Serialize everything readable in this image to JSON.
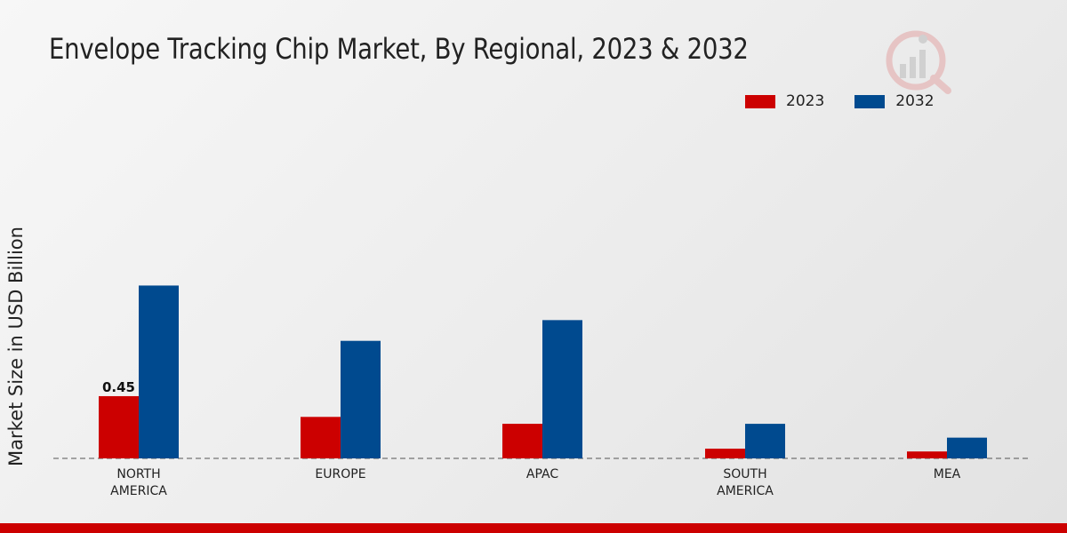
{
  "chart_data": {
    "type": "bar",
    "title": "Envelope Tracking Chip Market, By Regional, 2023 & 2032",
    "xlabel": "",
    "ylabel": "Market Size in USD Billion",
    "categories": [
      "NORTH AMERICA",
      "EUROPE",
      "APAC",
      "SOUTH AMERICA",
      "MEA"
    ],
    "series": [
      {
        "name": "2023",
        "color": "#cc0000",
        "values": [
          0.45,
          0.3,
          0.25,
          0.07,
          0.05
        ]
      },
      {
        "name": "2032",
        "color": "#004a8f",
        "values": [
          1.25,
          0.85,
          1.0,
          0.25,
          0.15
        ]
      }
    ],
    "data_labels": [
      {
        "series": "2023",
        "category": "NORTH AMERICA",
        "text": "0.45"
      }
    ],
    "ylim": [
      0,
      2.3
    ],
    "legend_position": "top-right",
    "grid": false
  }
}
